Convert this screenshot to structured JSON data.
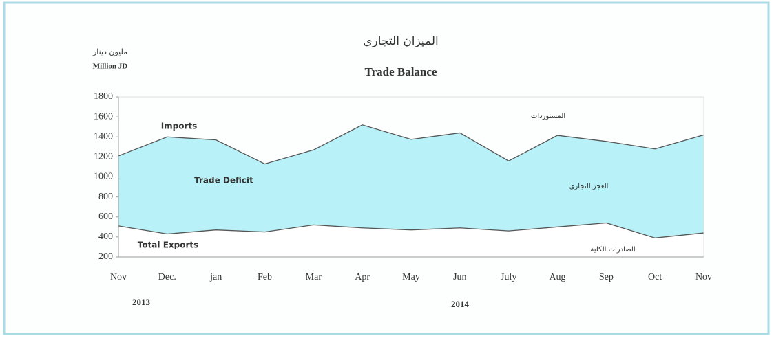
{
  "chart_data": {
    "type": "area_band",
    "title": "الميزان التجاري",
    "subtitle": "Trade Balance",
    "unit_label_ar": "مليون دينار",
    "unit_label": "Million JD",
    "categories": [
      "Nov",
      "Dec.",
      "jan",
      "Feb",
      "Mar",
      "Apr",
      "May",
      "Jun",
      "July",
      "Aug",
      "Sep",
      "Oct",
      "Nov"
    ],
    "series": [
      {
        "name": "Imports",
        "color": "#555555",
        "fill": "#b8f1f7",
        "values": [
          1210,
          1400,
          1370,
          1130,
          1270,
          1520,
          1375,
          1440,
          1160,
          1415,
          1355,
          1280,
          1420
        ]
      },
      {
        "name": "Total Exports",
        "color": "#555555",
        "fill": "#ffffff",
        "values": [
          510,
          430,
          470,
          450,
          520,
          490,
          470,
          490,
          460,
          500,
          540,
          390,
          440
        ]
      }
    ],
    "annotations": [
      "Trade Deficit",
      "المستوردات",
      "العجز التجاري",
      "الصادرات الكلية"
    ],
    "year_labels": [
      "2013",
      "2014"
    ],
    "ylim": [
      200,
      1800
    ],
    "yticks": [
      200,
      400,
      600,
      800,
      1000,
      1200,
      1400,
      1600,
      1800
    ]
  }
}
